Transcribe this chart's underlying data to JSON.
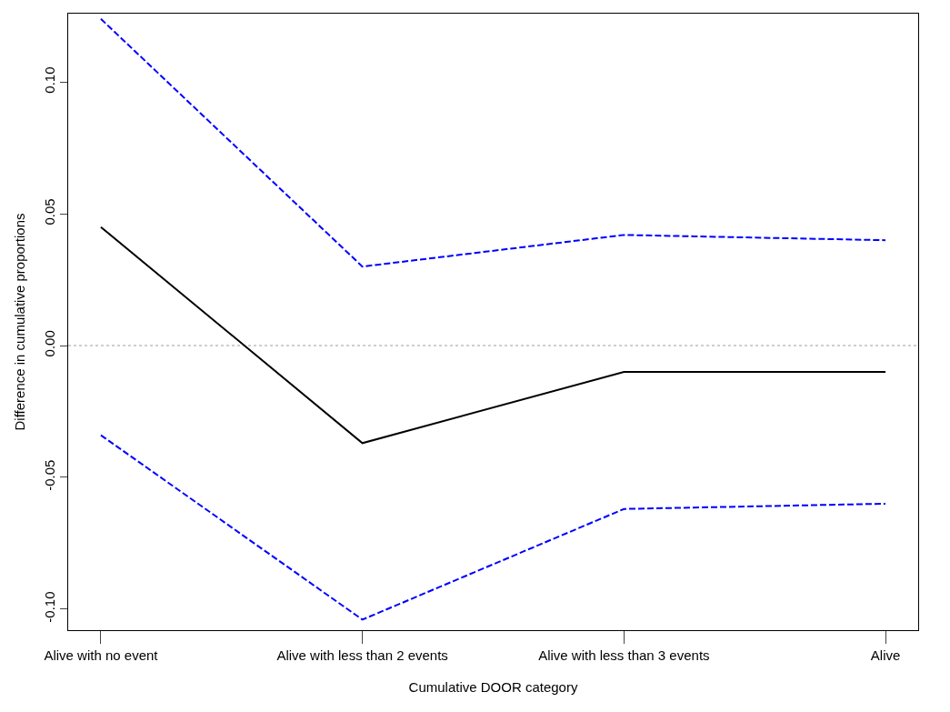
{
  "chart_data": {
    "type": "line",
    "xlabel": "Cumulative DOOR category",
    "ylabel": "Difference in cumulative proportions",
    "categories": [
      "Alive with no event",
      "Alive with less than 2 events",
      "Alive with less than 3 events",
      "Alive"
    ],
    "series": [
      {
        "color": "#000000",
        "values": [
          0.045,
          -0.037,
          -0.01,
          -0.01
        ],
        "line_style": "solid"
      },
      {
        "color": "#0000ff",
        "values": [
          0.124,
          0.03,
          0.042,
          0.04
        ],
        "line_style": "dashed"
      },
      {
        "color": "#0000ff",
        "values": [
          -0.034,
          -0.104,
          -0.062,
          -0.06
        ],
        "line_style": "dashed"
      }
    ],
    "ylim": [
      -0.108,
      0.126
    ],
    "yticks": [
      {
        "value": -0.1,
        "label": "-0.10"
      },
      {
        "value": -0.05,
        "label": "-0.05"
      },
      {
        "value": 0,
        "label": "0.00"
      },
      {
        "value": 0.05,
        "label": "0.05"
      },
      {
        "value": 0.1,
        "label": "0.10"
      }
    ],
    "ref_lines": [
      {
        "axis": "y",
        "value": 0,
        "color": "#bebebe",
        "line_style": "dotted"
      }
    ],
    "grid": false,
    "marker": "none"
  }
}
